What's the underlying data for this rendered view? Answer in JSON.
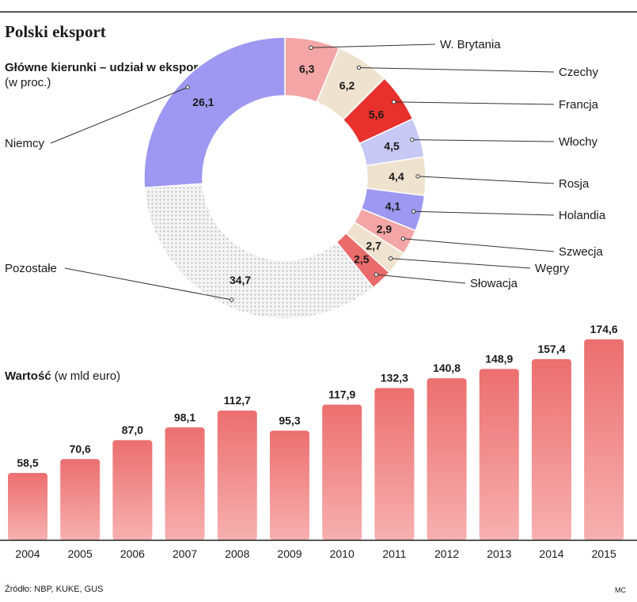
{
  "title": "Polski eksport",
  "subtitle": {
    "bold": "Główne kierunki – udział w eksporcie",
    "unit": "(w proc.)"
  },
  "value_title": {
    "bold": "Wartość",
    "unit": "(w mld euro)"
  },
  "source": "Źródło: NBP, KUKE, GUS",
  "credit": "MC",
  "colors": {
    "salmon_dark": "#ea6b6b",
    "salmon_light": "#f4a5a5",
    "beige": "#efe3cf",
    "red": "#e8302c",
    "lavender": "#c8c8f5",
    "purple": "#9e98f2",
    "dotted_gray": "#bdbdbd"
  },
  "chart_data": [
    {
      "type": "pie",
      "title": "Główne kierunki – udział w eksporcie",
      "unit": "(w proc.)",
      "slices": [
        {
          "label": "W. Brytania",
          "value": 6.3,
          "display": "6,3",
          "color": "#f4a5a5"
        },
        {
          "label": "Czechy",
          "value": 6.2,
          "display": "6,2",
          "color": "#efe3cf"
        },
        {
          "label": "Francja",
          "value": 5.6,
          "display": "5,6",
          "color": "#e8302c"
        },
        {
          "label": "Włochy",
          "value": 4.5,
          "display": "4,5",
          "color": "#c8c8f5"
        },
        {
          "label": "Rosja",
          "value": 4.4,
          "display": "4,4",
          "color": "#efe3cf"
        },
        {
          "label": "Holandia",
          "value": 4.1,
          "display": "4,1",
          "color": "#9e98f2"
        },
        {
          "label": "Szwecja",
          "value": 2.9,
          "display": "2,9",
          "color": "#f4a5a5"
        },
        {
          "label": "Węgry",
          "value": 2.7,
          "display": "2,7",
          "color": "#efe3cf"
        },
        {
          "label": "Słowacja",
          "value": 2.5,
          "display": "2,5",
          "color": "#ea6b6b"
        },
        {
          "label": "Pozostałe",
          "value": 34.7,
          "display": "34,7",
          "color": "dotted"
        },
        {
          "label": "Niemcy",
          "value": 26.1,
          "display": "26,1",
          "color": "#9e98f2"
        }
      ]
    },
    {
      "type": "bar",
      "title": "Wartość",
      "ylabel": "(w mld euro)",
      "categories": [
        "2004",
        "2005",
        "2006",
        "2007",
        "2008",
        "2009",
        "2010",
        "2011",
        "2012",
        "2013",
        "2014",
        "2015"
      ],
      "values": [
        58.5,
        70.6,
        87.0,
        98.1,
        112.7,
        95.3,
        117.9,
        132.3,
        140.8,
        148.9,
        157.4,
        174.6
      ],
      "value_labels": [
        "58,5",
        "70,6",
        "87,0",
        "98,1",
        "112,7",
        "95,3",
        "117,9",
        "132,3",
        "140,8",
        "148,9",
        "157,4",
        "174,6"
      ],
      "ylim": [
        0,
        174.6
      ]
    }
  ]
}
